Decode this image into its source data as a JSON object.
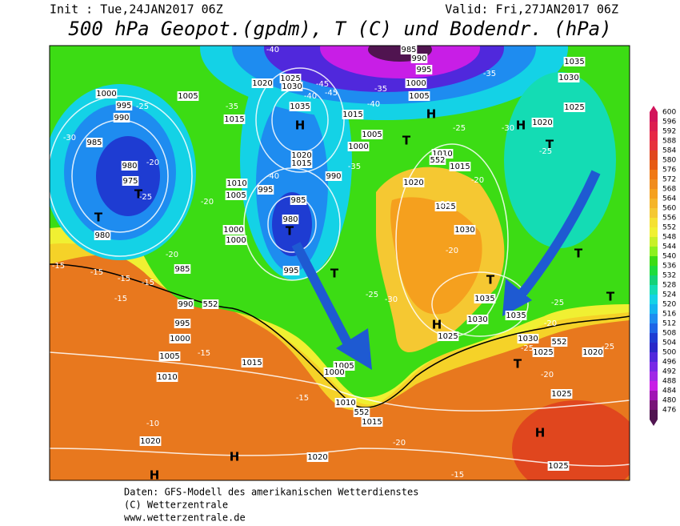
{
  "header": {
    "init": "Init : Tue,24JAN2017 06Z",
    "valid": "Valid: Fri,27JAN2017 06Z",
    "title": "500 hPa Geopot.(gpdm), T (C) und Bodendr. (hPa)"
  },
  "colorbar": {
    "levels": [
      600,
      596,
      592,
      588,
      584,
      580,
      576,
      572,
      568,
      564,
      560,
      556,
      552,
      548,
      544,
      540,
      536,
      532,
      528,
      524,
      520,
      516,
      512,
      508,
      504,
      500,
      496,
      492,
      488,
      484,
      480,
      476
    ],
    "colors": [
      "#d2145a",
      "#dc1e50",
      "#e62846",
      "#e6323c",
      "#e0461e",
      "#e65a14",
      "#f07814",
      "#f08c1e",
      "#f5a01e",
      "#f5b428",
      "#f5c832",
      "#f5e132",
      "#f0f032",
      "#c8f028",
      "#8cf01e",
      "#3cdc14",
      "#1edc3c",
      "#14d278",
      "#14dcb4",
      "#14d2e6",
      "#14b4f0",
      "#1e8cf0",
      "#1e64e6",
      "#1e3cd2",
      "#2828c8",
      "#5028dc",
      "#7828e6",
      "#a028e6",
      "#c81ee6",
      "#a014b4",
      "#781478",
      "#501450"
    ]
  },
  "map": {
    "labels": [
      "H",
      "H",
      "H",
      "H",
      "H",
      "H",
      "H",
      "T",
      "T",
      "T",
      "T",
      "T",
      "T",
      "T",
      "T",
      "T",
      "T",
      "1000",
      "995",
      "990",
      "985",
      "980",
      "975",
      "980",
      "1005",
      "1015",
      "1020",
      "1025",
      "1030",
      "1035",
      "985",
      "990",
      "995",
      "1000",
      "1005",
      "1035",
      "1030",
      "1025",
      "1020",
      "1010",
      "1015",
      "1020",
      "1025",
      "1030",
      "1035",
      "1030",
      "1025",
      "1035",
      "1030",
      "1025",
      "1020",
      "1025",
      "1025",
      "1010",
      "1005",
      "1000",
      "1000",
      "985",
      "990",
      "995",
      "1000",
      "1005",
      "1010",
      "1015",
      "1005",
      "1000",
      "1010",
      "1015",
      "1020",
      "1020",
      "1015",
      "1005",
      "1000",
      "990",
      "995",
      "985",
      "980",
      "995",
      "1020",
      "1015",
      "-25",
      "-30",
      "-20",
      "-25",
      "-20",
      "-20",
      "-15",
      "-15",
      "-15",
      "-15",
      "-15",
      "-15",
      "-10",
      "-15",
      "-20",
      "-15",
      "-25",
      "-30",
      "-25",
      "-30",
      "-20",
      "-20",
      "-20",
      "-25",
      "-20",
      "-25",
      "-20",
      "-25",
      "-35",
      "-35",
      "-40",
      "-45",
      "-45",
      "-40",
      "-35",
      "-40",
      "-35",
      "-40",
      "-25",
      "552",
      "552",
      "552",
      "552"
    ]
  },
  "footer": {
    "lines": [
      "Daten: GFS-Modell des amerikanischen Wetterdienstes",
      "(C) Wetterzentrale",
      "www.wetterzentrale.de"
    ]
  }
}
